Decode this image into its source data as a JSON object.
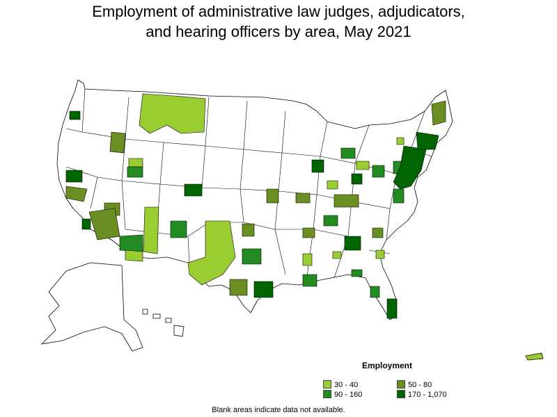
{
  "title_line1": "Employment of administrative law judges, adjudicators,",
  "title_line2": "and hearing officers by area, May 2021",
  "legend": {
    "title": "Employment",
    "items": [
      {
        "label": "30 - 40",
        "color": "#9acd32"
      },
      {
        "label": "50 - 80",
        "color": "#6b8e23"
      },
      {
        "label": "90 - 160",
        "color": "#228b22"
      },
      {
        "label": "170 - 1,070",
        "color": "#006400"
      }
    ]
  },
  "footnote": "Blank areas indicate data not available.",
  "colors": {
    "blank": "#ffffff",
    "border": "#000000"
  }
}
